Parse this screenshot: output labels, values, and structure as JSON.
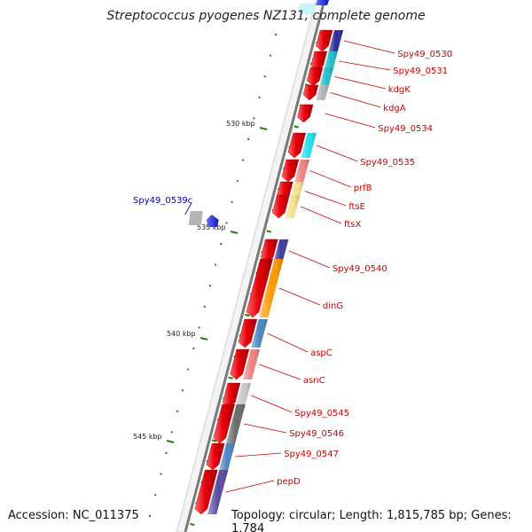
{
  "title": "Streptococcus pyogenes NZ131, complete genome",
  "footer": {
    "accession": "Accession: NC_011375",
    "topology": "Topology: circular; Length: 1,815,785 bp; Genes: 1,784"
  },
  "colors": {
    "forward_gene": "#e8000b",
    "reverse_gene": "#0a14e0",
    "label_forward": "#cc0000",
    "label_reverse": "#0000aa",
    "tick": "#2e7d12",
    "backbone": "#888888"
  },
  "scale_labels": [
    "530 kbp",
    "535 kbp",
    "540 kbp",
    "545 kbp"
  ],
  "genes": [
    {
      "name": "Spy49_0530",
      "strand": "forward",
      "cog": "#2a2a9a"
    },
    {
      "name": "Spy49_0531",
      "strand": "forward",
      "cog": "#1fbfc8"
    },
    {
      "name": "kdgK",
      "strand": "forward",
      "cog": "#1fbfc8"
    },
    {
      "name": "kdgA",
      "strand": "forward",
      "cog": "#b4b4b4"
    },
    {
      "name": "Spy49_0534",
      "strand": "forward",
      "cog": "none"
    },
    {
      "name": "Spy49_0535",
      "strand": "forward",
      "cog": "#22e0ee"
    },
    {
      "name": "prfB",
      "strand": "forward",
      "cog": "#f08080"
    },
    {
      "name": "ftsE",
      "strand": "forward",
      "cog": "#f5e08e"
    },
    {
      "name": "ftsX",
      "strand": "forward",
      "cog": "#f5e08e"
    },
    {
      "name": "Spy49_0539c",
      "strand": "reverse",
      "cog": "#b4b4b4"
    },
    {
      "name": "Spy49_0540",
      "strand": "forward",
      "cog": "#3a3aa0"
    },
    {
      "name": "dinG",
      "strand": "forward",
      "cog": "#ff9a00"
    },
    {
      "name": "aspC",
      "strand": "forward",
      "cog": "#4a86c0"
    },
    {
      "name": "asnC",
      "strand": "forward",
      "cog": "#f08080"
    },
    {
      "name": "Spy49_0545",
      "strand": "forward",
      "cog": "#c8c8c8"
    },
    {
      "name": "Spy49_0546",
      "strand": "forward",
      "cog": "#6a6a6a"
    },
    {
      "name": "Spy49_0547",
      "strand": "forward",
      "cog": "#4a86c0"
    },
    {
      "name": "pepD",
      "strand": "forward",
      "cog": "#5a4aa0"
    }
  ]
}
